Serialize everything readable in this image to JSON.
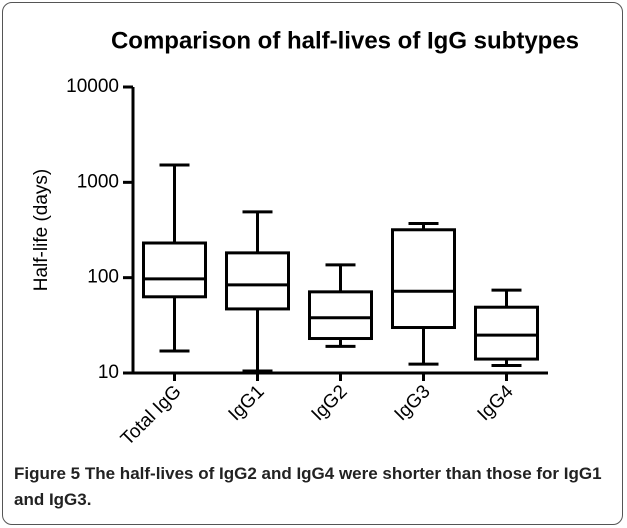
{
  "chart_data": {
    "type": "box",
    "title": "Comparison of half-lives of IgG subtypes",
    "y_label": "Half-life (days)",
    "categories": [
      "Total IgG",
      "IgG1",
      "IgG2",
      "IgG3",
      "IgG4"
    ],
    "min": [
      17,
      10.5,
      19,
      12.4,
      12
    ],
    "q1": [
      63,
      47,
      23,
      30,
      14
    ],
    "median": [
      97,
      84,
      38,
      72,
      25
    ],
    "q3": [
      231,
      182,
      71,
      318,
      49
    ],
    "max": [
      1520,
      490,
      136,
      370,
      74
    ],
    "color": "#000000",
    "log_scale": true,
    "ylim": [
      10,
      10000
    ],
    "yticks": [
      10,
      100,
      1000,
      10000
    ]
  },
  "caption": {
    "label": "Figure 5",
    "text": "The half-lives of IgG2 and IgG4 were shorter than those for IgG1 and IgG3."
  }
}
